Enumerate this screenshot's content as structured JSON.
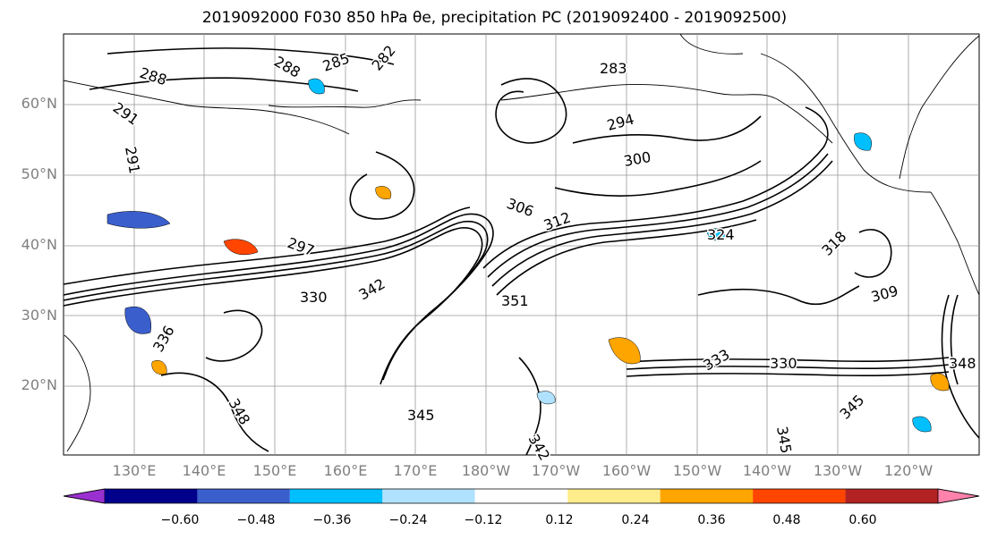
{
  "title": "2019092000 F030 850 hPa θe, precipitation PC (2019092400 - 2019092500)",
  "lat_labels": [
    "60°N",
    "50°N",
    "40°N",
    "30°N",
    "20°N"
  ],
  "lon_labels": [
    "130°E",
    "140°E",
    "150°E",
    "160°E",
    "170°E",
    "180°W",
    "170°W",
    "160°W",
    "150°W",
    "140°W",
    "130°W",
    "120°W"
  ],
  "contour_labels": [
    "288",
    "288",
    "285",
    "282",
    "283",
    "291",
    "291",
    "294",
    "300",
    "306",
    "312",
    "297",
    "318",
    "324",
    "342",
    "330",
    "336",
    "345",
    "348",
    "351",
    "309",
    "333",
    "330",
    "345",
    "342",
    "348",
    "345"
  ],
  "colorbar": {
    "ticks": [
      "−0.60",
      "−0.48",
      "−0.36",
      "−0.24",
      "−0.12",
      "0.12",
      "0.24",
      "0.36",
      "0.48",
      "0.60"
    ],
    "colors": [
      "#9b30d0",
      "#00008b",
      "#3a5fcd",
      "#00bfff",
      "#b0e2ff",
      "#ffffff",
      "#ffec8b",
      "#ffa500",
      "#ff4500",
      "#b22222",
      "#ff82ab"
    ]
  }
}
